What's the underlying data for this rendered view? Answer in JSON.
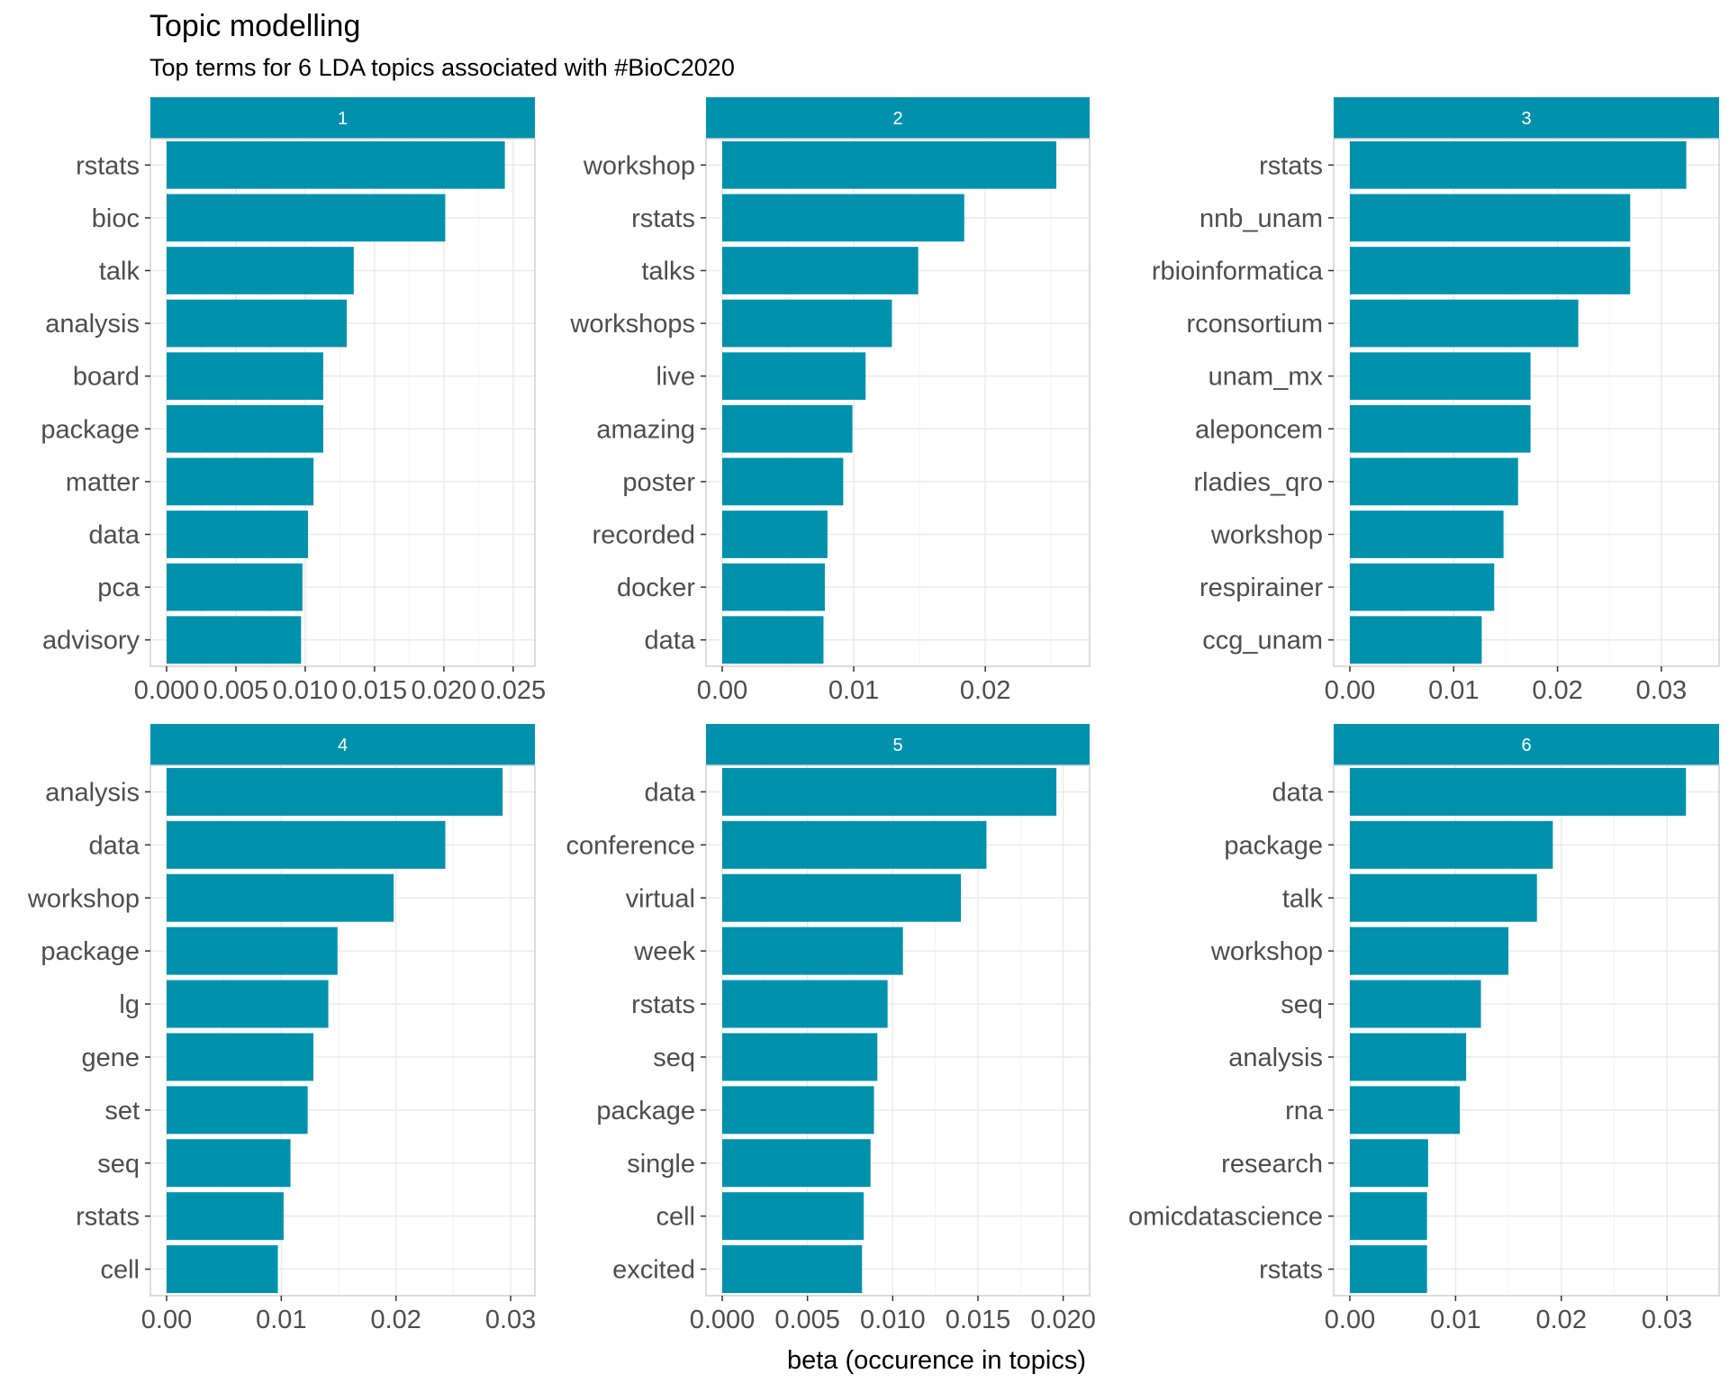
{
  "chart_data": {
    "type": "bar",
    "orientation": "horizontal",
    "title": "Topic modelling",
    "subtitle": "Top terms for 6 LDA topics associated with #BioC2020",
    "xlabel": "beta (occurence in topics)",
    "ylabel": "",
    "grid": true,
    "colors": {
      "bar": "#0092AD",
      "strip": "#0092AD",
      "strip_text": "#ffffff",
      "grid": "#ebebeb",
      "panel_border": "#d0d0d0",
      "axis_text": "#4d4d4d"
    },
    "panels": [
      {
        "strip": "1",
        "categories": [
          "rstats",
          "bioc",
          "talk",
          "analysis",
          "board",
          "package",
          "matter",
          "data",
          "pca",
          "advisory"
        ],
        "values": [
          0.0244,
          0.0201,
          0.0135,
          0.013,
          0.0113,
          0.0113,
          0.0106,
          0.0102,
          0.0098,
          0.0097
        ],
        "xlim": [
          0,
          0.0254
        ],
        "ticks": [
          0,
          0.005,
          0.01,
          0.015,
          0.02,
          0.025
        ],
        "tick_labels": [
          "0.000",
          "0.005",
          "0.010",
          "0.015",
          "0.020",
          "0.025"
        ]
      },
      {
        "strip": "2",
        "categories": [
          "workshop",
          "rstats",
          "talks",
          "workshops",
          "live",
          "amazing",
          "poster",
          "recorded",
          "docker",
          "data"
        ],
        "values": [
          0.0254,
          0.0184,
          0.0149,
          0.0129,
          0.0109,
          0.0099,
          0.0092,
          0.008,
          0.0078,
          0.0077
        ],
        "xlim": [
          0,
          0.0267
        ],
        "ticks": [
          0,
          0.01,
          0.02
        ],
        "tick_labels": [
          "0.00",
          "0.01",
          "0.02"
        ]
      },
      {
        "strip": "3",
        "categories": [
          "rstats",
          "nnb_unam",
          "rbioinformatica",
          "rconsortium",
          "unam_mx",
          "aleponcem",
          "rladies_qro",
          "workshop",
          "respirainer",
          "ccg_unam"
        ],
        "values": [
          0.0324,
          0.027,
          0.027,
          0.022,
          0.0174,
          0.0174,
          0.0162,
          0.0148,
          0.0139,
          0.0127
        ],
        "xlim": [
          0,
          0.034
        ],
        "ticks": [
          0,
          0.01,
          0.02,
          0.03
        ],
        "tick_labels": [
          "0.00",
          "0.01",
          "0.02",
          "0.03"
        ]
      },
      {
        "strip": "4",
        "categories": [
          "analysis",
          "data",
          "workshop",
          "package",
          "lg",
          "gene",
          "set",
          "seq",
          "rstats",
          "cell"
        ],
        "values": [
          0.0293,
          0.0243,
          0.0198,
          0.0149,
          0.0141,
          0.0128,
          0.0123,
          0.0108,
          0.0102,
          0.0097
        ],
        "xlim": [
          0,
          0.0307
        ],
        "ticks": [
          0,
          0.01,
          0.02,
          0.03
        ],
        "tick_labels": [
          "0.00",
          "0.01",
          "0.02",
          "0.03"
        ]
      },
      {
        "strip": "5",
        "categories": [
          "data",
          "conference",
          "virtual",
          "week",
          "rstats",
          "seq",
          "package",
          "single",
          "cell",
          "excited"
        ],
        "values": [
          0.0196,
          0.0155,
          0.014,
          0.0106,
          0.0097,
          0.0091,
          0.0089,
          0.0087,
          0.0083,
          0.0082
        ],
        "xlim": [
          0,
          0.0206
        ],
        "ticks": [
          0,
          0.005,
          0.01,
          0.015,
          0.02
        ],
        "tick_labels": [
          "0.000",
          "0.005",
          "0.010",
          "0.015",
          "0.020"
        ]
      },
      {
        "strip": "6",
        "categories": [
          "data",
          "package",
          "talk",
          "workshop",
          "seq",
          "analysis",
          "rna",
          "research",
          "omicdatascience",
          "rstats"
        ],
        "values": [
          0.0318,
          0.0192,
          0.0177,
          0.015,
          0.0124,
          0.011,
          0.0104,
          0.0074,
          0.0073,
          0.0073
        ],
        "xlim": [
          0,
          0.0334
        ],
        "ticks": [
          0,
          0.01,
          0.02,
          0.03
        ],
        "tick_labels": [
          "0.00",
          "0.01",
          "0.02",
          "0.03"
        ]
      }
    ]
  }
}
